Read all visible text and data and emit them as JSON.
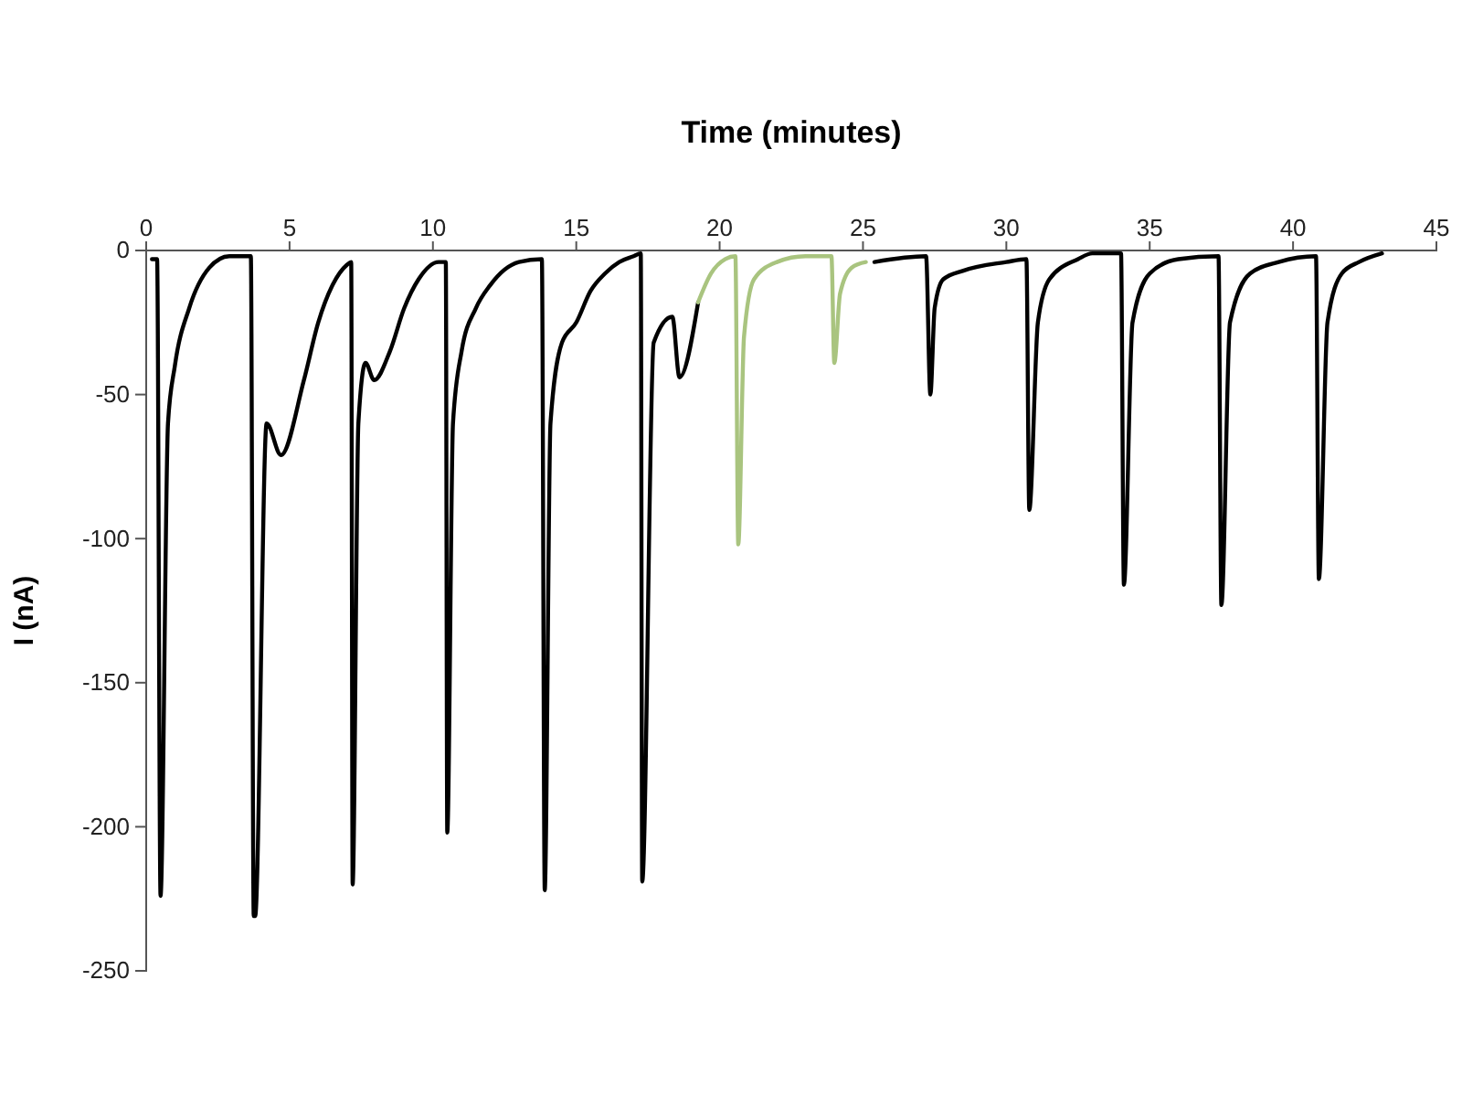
{
  "chart_data": {
    "type": "line",
    "xlabel": "Time (minutes)",
    "ylabel": "I (nA)",
    "xlim": [
      0,
      45
    ],
    "ylim": [
      -250,
      0
    ],
    "xticks": [
      0,
      5,
      10,
      15,
      20,
      25,
      30,
      35,
      40,
      45
    ],
    "yticks": [
      0,
      -50,
      -100,
      -150,
      -200,
      -250
    ],
    "marker": "none",
    "line_style": "solid",
    "series": [
      {
        "color": "#000000",
        "x": [
          0.2,
          0.38,
          0.5,
          0.76,
          1.0,
          1.5,
          2.2,
          2.9,
          3.65,
          3.75,
          3.8,
          4.2,
          4.7,
          5.5,
          6.0,
          6.5,
          7.0,
          7.15,
          7.2,
          7.4,
          7.65,
          7.95,
          8.5,
          9.0,
          9.5,
          10.2,
          10.45,
          10.5,
          10.7,
          11.0,
          11.5,
          12.0,
          13.0,
          13.8,
          13.9,
          14.1,
          14.5,
          15.0,
          15.5,
          16.0,
          16.5,
          17.0,
          17.25,
          17.3,
          17.7,
          18.35,
          18.6,
          19.25
        ],
        "values": [
          -3,
          -3,
          -224,
          -60,
          -40,
          -20,
          -6,
          -2,
          -2,
          -231,
          -231,
          -60,
          -71,
          -45,
          -25,
          -12,
          -5,
          -4,
          -220,
          -60,
          -39,
          -45,
          -35,
          -20,
          -10,
          -4,
          -4,
          -202,
          -60,
          -35,
          -20,
          -12,
          -4,
          -3,
          -222,
          -60,
          -32,
          -25,
          -14,
          -8,
          -4,
          -2,
          -1,
          -219,
          -32,
          -23,
          -44,
          -18
        ]
      },
      {
        "color": "#a9c47f",
        "x": [
          19.25,
          19.7,
          20.2,
          20.55,
          20.65,
          20.85,
          21.2,
          22.0,
          23.0,
          23.9,
          24.0,
          24.2,
          24.6,
          25.1
        ],
        "values": [
          -18,
          -8,
          -3,
          -2,
          -102,
          -30,
          -10,
          -4,
          -2,
          -2,
          -39,
          -15,
          -6,
          -4
        ]
      },
      {
        "color": "#000000",
        "x": [
          25.4,
          27.2,
          27.35,
          27.5,
          27.8,
          28.5,
          30.0,
          30.7,
          30.8,
          31.1,
          31.5,
          32.5,
          33.0,
          34.0,
          34.1,
          34.4,
          35.0,
          36.0,
          37.4,
          37.5,
          37.8,
          38.5,
          39.5,
          40.8,
          40.9,
          41.2,
          41.7,
          42.3,
          43.1
        ],
        "values": [
          -4,
          -2,
          -50,
          -20,
          -10,
          -7,
          -4,
          -3,
          -90,
          -25,
          -10,
          -3,
          -1,
          -1,
          -116,
          -25,
          -8,
          -3,
          -2,
          -123,
          -25,
          -8,
          -4,
          -2,
          -114,
          -25,
          -8,
          -4,
          -1
        ]
      }
    ]
  }
}
